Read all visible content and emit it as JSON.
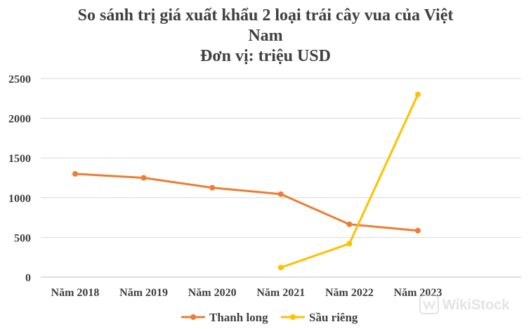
{
  "chart_data": {
    "type": "line",
    "title_lines": [
      "So sánh trị giá xuất khẩu 2 loại trái cây vua của Việt",
      "Nam",
      "Đơn vị: triệu USD"
    ],
    "categories": [
      "Năm 2018",
      "Năm 2019",
      "Năm 2020",
      "Năm 2021",
      "Năm 2022",
      "Năm 2023"
    ],
    "yticks": [
      "0",
      "500",
      "1000",
      "1500",
      "2000",
      "2500"
    ],
    "ylim": [
      0,
      2500
    ],
    "grid": true,
    "legend_position": "bottom",
    "series": [
      {
        "name": "Thanh long",
        "color": "#ED7D31",
        "values": [
          1300,
          1250,
          1125,
          1045,
          665,
          585
        ]
      },
      {
        "name": "Sầu riêng",
        "color": "#FFC000",
        "values": [
          null,
          null,
          null,
          120,
          420,
          2300
        ]
      }
    ]
  },
  "watermark": {
    "text": "WikiStock",
    "icon": "wikistock-logo-icon"
  }
}
